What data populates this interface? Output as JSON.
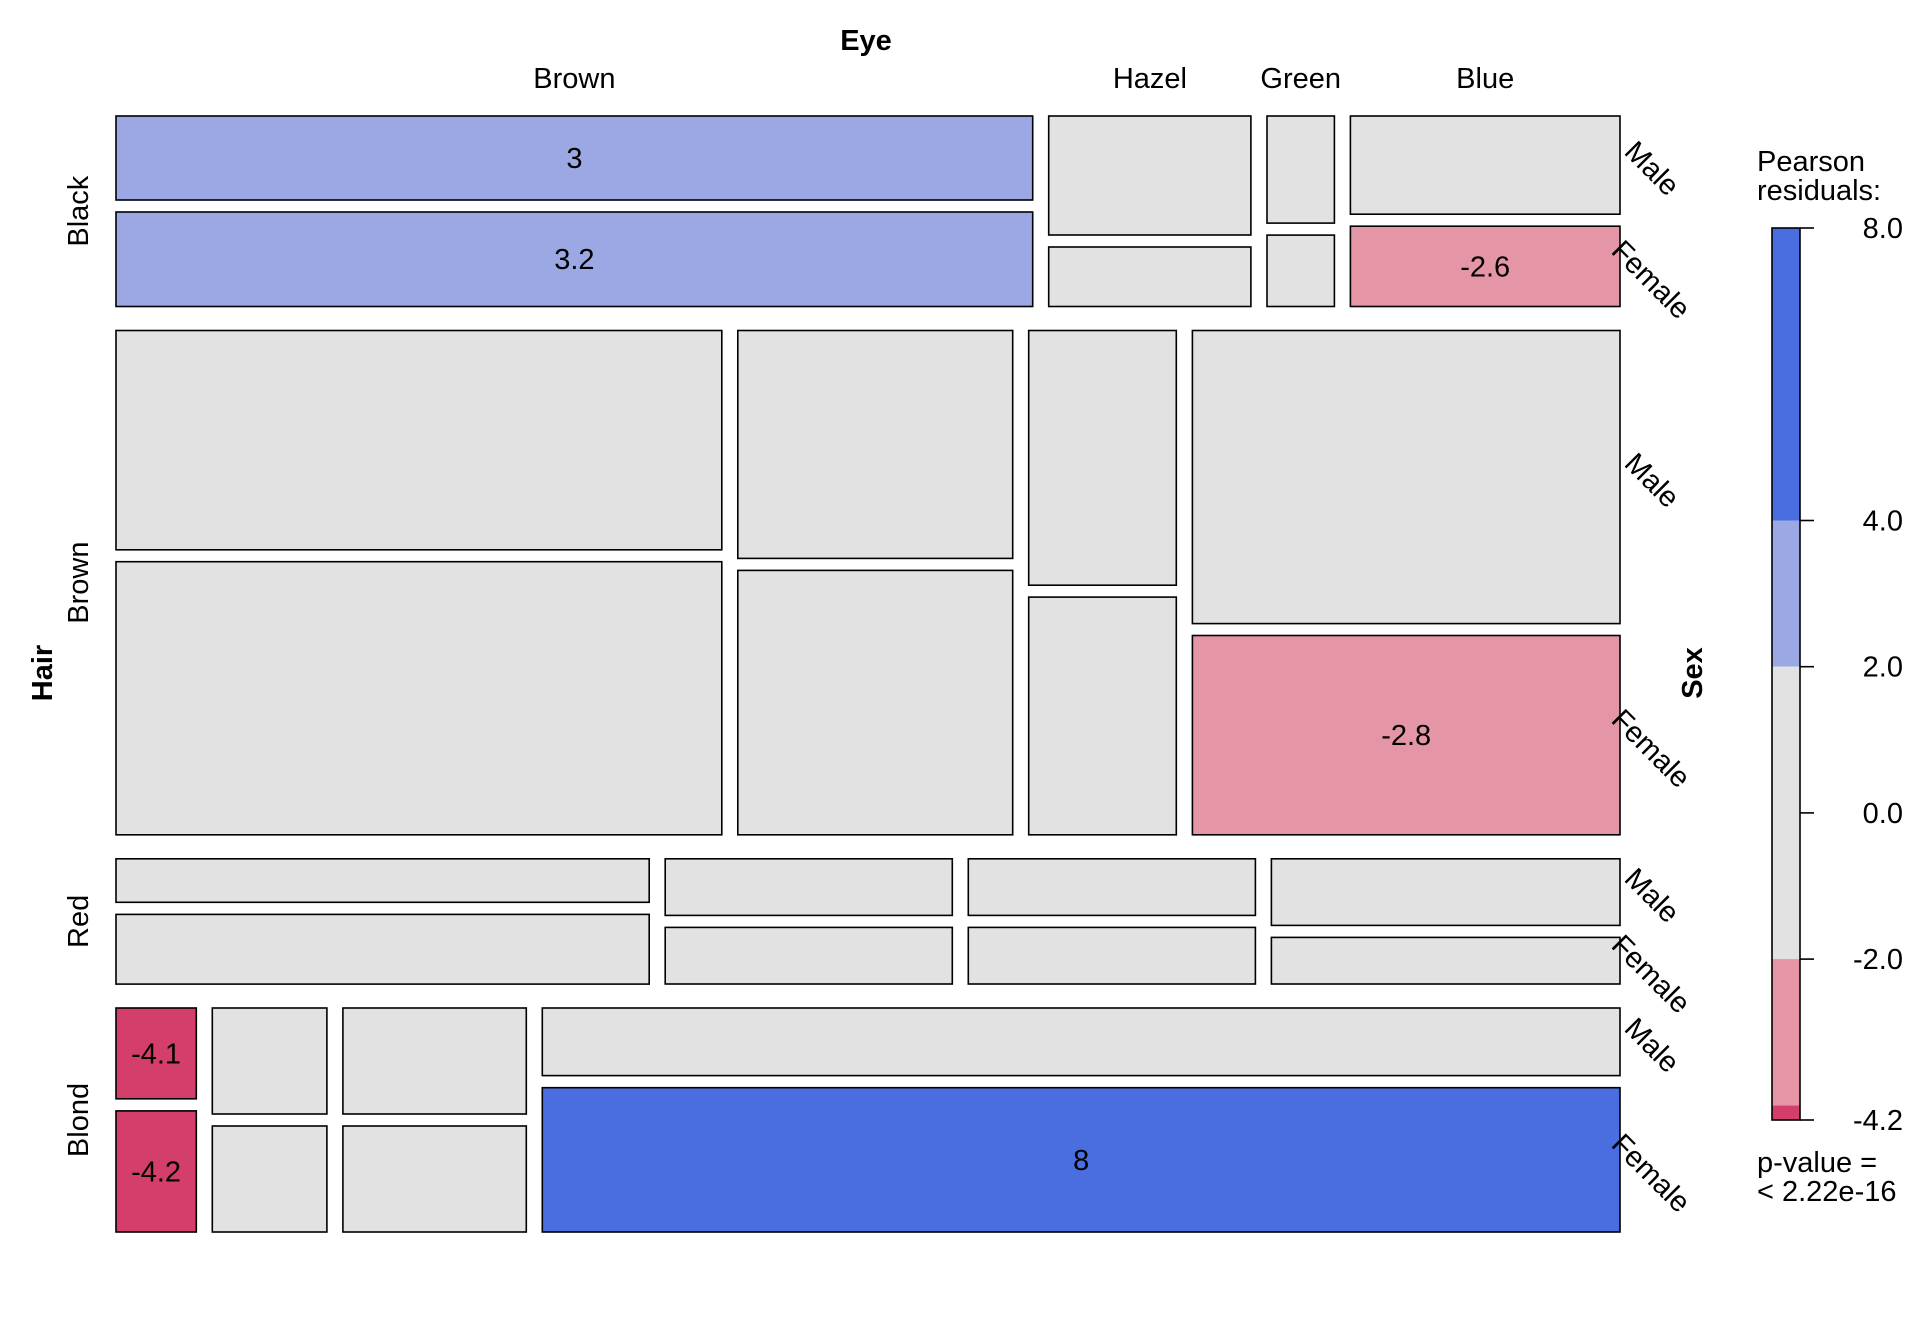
{
  "chart_data": {
    "type": "mosaic",
    "title": "",
    "column_variable": "Eye",
    "row_variable": "Hair",
    "sub_variable": "Sex",
    "eye_levels": [
      "Brown",
      "Hazel",
      "Green",
      "Blue"
    ],
    "hair_levels": [
      "Black",
      "Brown",
      "Red",
      "Blond"
    ],
    "sex_levels": [
      "Male",
      "Female"
    ],
    "counts": {
      "Black": {
        "Brown": [
          32,
          36
        ],
        "Hazel": [
          10,
          5
        ],
        "Green": [
          3,
          2
        ],
        "Blue": [
          11,
          9
        ]
      },
      "Brown": {
        "Brown": [
          53,
          66
        ],
        "Hazel": [
          25,
          29
        ],
        "Green": [
          15,
          14
        ],
        "Blue": [
          50,
          34
        ]
      },
      "Red": {
        "Brown": [
          10,
          16
        ],
        "Hazel": [
          7,
          7
        ],
        "Green": [
          7,
          7
        ],
        "Blue": [
          10,
          7
        ]
      },
      "Blond": {
        "Brown": [
          3,
          4
        ],
        "Hazel": [
          5,
          5
        ],
        "Green": [
          8,
          8
        ],
        "Blue": [
          30,
          64
        ]
      }
    },
    "shaded_residuals": [
      {
        "hair": "Black",
        "eye": "Brown",
        "sex": "Male",
        "value": "3"
      },
      {
        "hair": "Black",
        "eye": "Brown",
        "sex": "Female",
        "value": "3.2"
      },
      {
        "hair": "Black",
        "eye": "Blue",
        "sex": "Female",
        "value": "-2.6"
      },
      {
        "hair": "Brown",
        "eye": "Blue",
        "sex": "Female",
        "value": "-2.8"
      },
      {
        "hair": "Blond",
        "eye": "Brown",
        "sex": "Male",
        "value": "-4.1"
      },
      {
        "hair": "Blond",
        "eye": "Brown",
        "sex": "Female",
        "value": "-4.2"
      },
      {
        "hair": "Blond",
        "eye": "Blue",
        "sex": "Female",
        "value": "8"
      }
    ],
    "legend": {
      "title_lines": [
        "Pearson",
        "residuals:"
      ],
      "range": [
        -4.2,
        8.0
      ],
      "ticks": [
        "8.0",
        "4.0",
        "2.0",
        "0.0",
        "-2.0",
        "-4.2"
      ],
      "pvalue_lines": [
        "p-value =",
        "< 2.22e-16"
      ]
    },
    "colors": {
      "neutral": "#e2e2e2",
      "blue_strong": "#4a6ee0",
      "blue_light": "#9ca8e3",
      "red_light": "#e495a6",
      "red_strong": "#d33f6a",
      "border": "#000000"
    }
  }
}
